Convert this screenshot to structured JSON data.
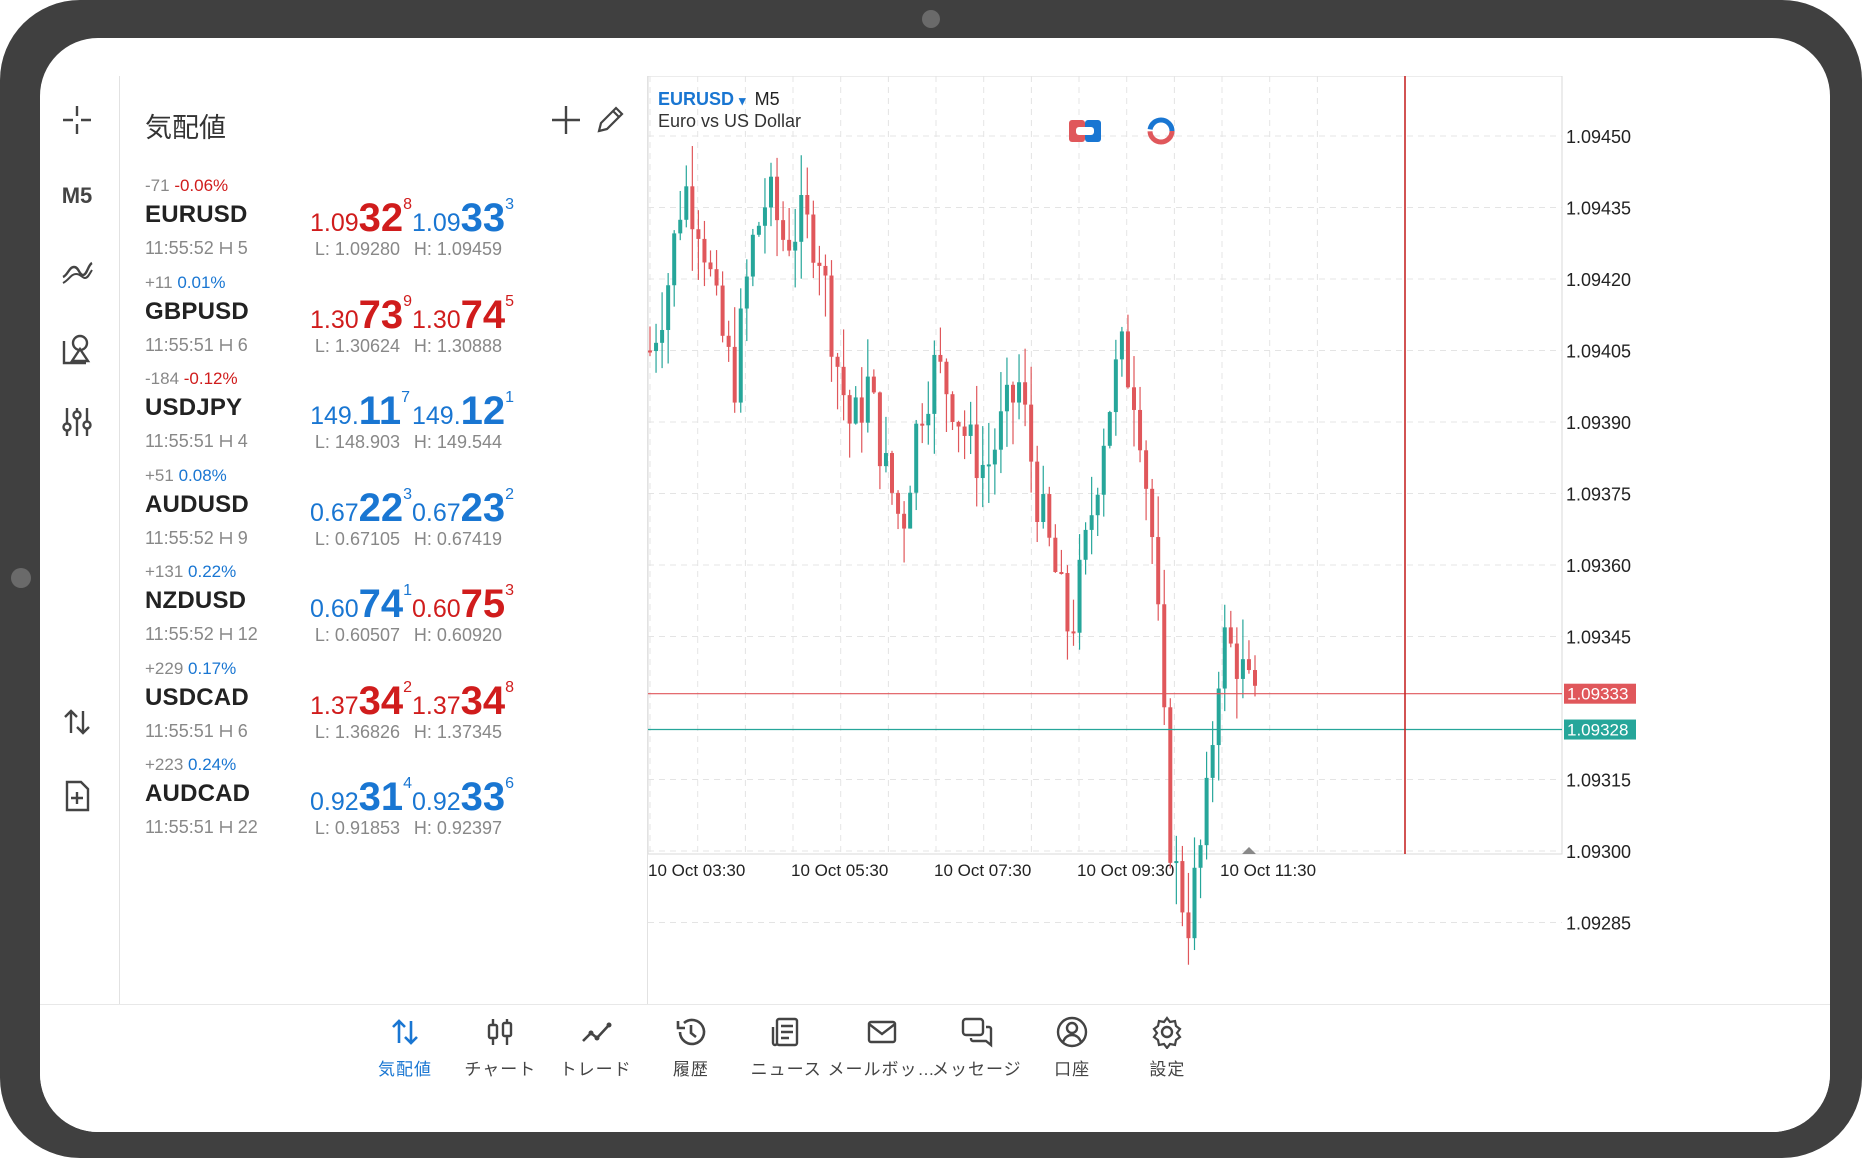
{
  "rail": {
    "timeframe": "M5"
  },
  "quotes": {
    "title": "気配値",
    "rows": [
      {
        "change": "-71",
        "pct": "-0.06%",
        "dir": "neg",
        "symbol": "EURUSD",
        "time": "11:55:52",
        "spread": "5",
        "bid": {
          "pre": "1.09",
          "big": "32",
          "sup": "8",
          "color": "red"
        },
        "ask": {
          "pre": "1.09",
          "big": "33",
          "sup": "3",
          "color": "blue"
        },
        "low": "L: 1.09280",
        "high": "H: 1.09459"
      },
      {
        "change": "+11",
        "pct": "0.01%",
        "dir": "pos",
        "symbol": "GBPUSD",
        "time": "11:55:51",
        "spread": "6",
        "bid": {
          "pre": "1.30",
          "big": "73",
          "sup": "9",
          "color": "red"
        },
        "ask": {
          "pre": "1.30",
          "big": "74",
          "sup": "5",
          "color": "red"
        },
        "low": "L: 1.30624",
        "high": "H: 1.30888"
      },
      {
        "change": "-184",
        "pct": "-0.12%",
        "dir": "neg",
        "symbol": "USDJPY",
        "time": "11:55:51",
        "spread": "4",
        "bid": {
          "pre": "149.",
          "big": "11",
          "sup": "7",
          "color": "blue"
        },
        "ask": {
          "pre": "149.",
          "big": "12",
          "sup": "1",
          "color": "blue"
        },
        "low": "L: 148.903",
        "high": "H: 149.544"
      },
      {
        "change": "+51",
        "pct": "0.08%",
        "dir": "pos",
        "symbol": "AUDUSD",
        "time": "11:55:52",
        "spread": "9",
        "bid": {
          "pre": "0.67",
          "big": "22",
          "sup": "3",
          "color": "blue"
        },
        "ask": {
          "pre": "0.67",
          "big": "23",
          "sup": "2",
          "color": "blue"
        },
        "low": "L: 0.67105",
        "high": "H: 0.67419"
      },
      {
        "change": "+131",
        "pct": "0.22%",
        "dir": "pos",
        "symbol": "NZDUSD",
        "time": "11:55:52",
        "spread": "12",
        "bid": {
          "pre": "0.60",
          "big": "74",
          "sup": "1",
          "color": "blue"
        },
        "ask": {
          "pre": "0.60",
          "big": "75",
          "sup": "3",
          "color": "red"
        },
        "low": "L: 0.60507",
        "high": "H: 0.60920"
      },
      {
        "change": "+229",
        "pct": "0.17%",
        "dir": "pos",
        "symbol": "USDCAD",
        "time": "11:55:51",
        "spread": "6",
        "bid": {
          "pre": "1.37",
          "big": "34",
          "sup": "2",
          "color": "red"
        },
        "ask": {
          "pre": "1.37",
          "big": "34",
          "sup": "8",
          "color": "red"
        },
        "low": "L: 1.36826",
        "high": "H: 1.37345"
      },
      {
        "change": "+223",
        "pct": "0.24%",
        "dir": "pos",
        "symbol": "AUDCAD",
        "time": "11:55:51",
        "spread": "22",
        "bid": {
          "pre": "0.92",
          "big": "31",
          "sup": "4",
          "color": "blue"
        },
        "ask": {
          "pre": "0.92",
          "big": "33",
          "sup": "6",
          "color": "blue"
        },
        "low": "L: 0.91853",
        "high": "H: 0.92397"
      }
    ]
  },
  "chart": {
    "symbol": "EURUSD",
    "dropdown_glyph": "▾",
    "timeframe": "M5",
    "description": "Euro vs US Dollar",
    "ask_label": "1.09333",
    "bid_label": "1.09328",
    "ask_price": 1.09333,
    "bid_price": 1.09328,
    "y_ticks": [
      "1.09450",
      "1.09435",
      "1.09420",
      "1.09405",
      "1.09390",
      "1.09375",
      "1.09360",
      "1.09345",
      "1.09315",
      "1.09300",
      "1.09285"
    ],
    "x_ticks": [
      "10 Oct 03:30",
      "10 Oct 05:30",
      "10 Oct 07:30",
      "10 Oct 09:30",
      "10 Oct 11:30"
    ],
    "colors": {
      "bull": "#26a69a",
      "bear": "#e0575b",
      "ask_line": "#e0575b",
      "bid_line": "#26a69a",
      "crosshair": "#c62828",
      "grid": "#e4e4e4"
    }
  },
  "nav": {
    "items": [
      {
        "label": "気配値",
        "icon": "updown-arrows-icon",
        "active": true
      },
      {
        "label": "チャート",
        "icon": "candles-icon",
        "active": false
      },
      {
        "label": "トレード",
        "icon": "trend-icon",
        "active": false
      },
      {
        "label": "履歴",
        "icon": "history-icon",
        "active": false
      },
      {
        "label": "ニュース",
        "icon": "news-icon",
        "active": false
      },
      {
        "label": "メールボッ…",
        "icon": "mail-icon",
        "active": false
      },
      {
        "label": "メッセージ",
        "icon": "chat-icon",
        "active": false
      },
      {
        "label": "口座",
        "icon": "account-icon",
        "active": false
      },
      {
        "label": "設定",
        "icon": "gear-icon",
        "active": false
      }
    ]
  }
}
